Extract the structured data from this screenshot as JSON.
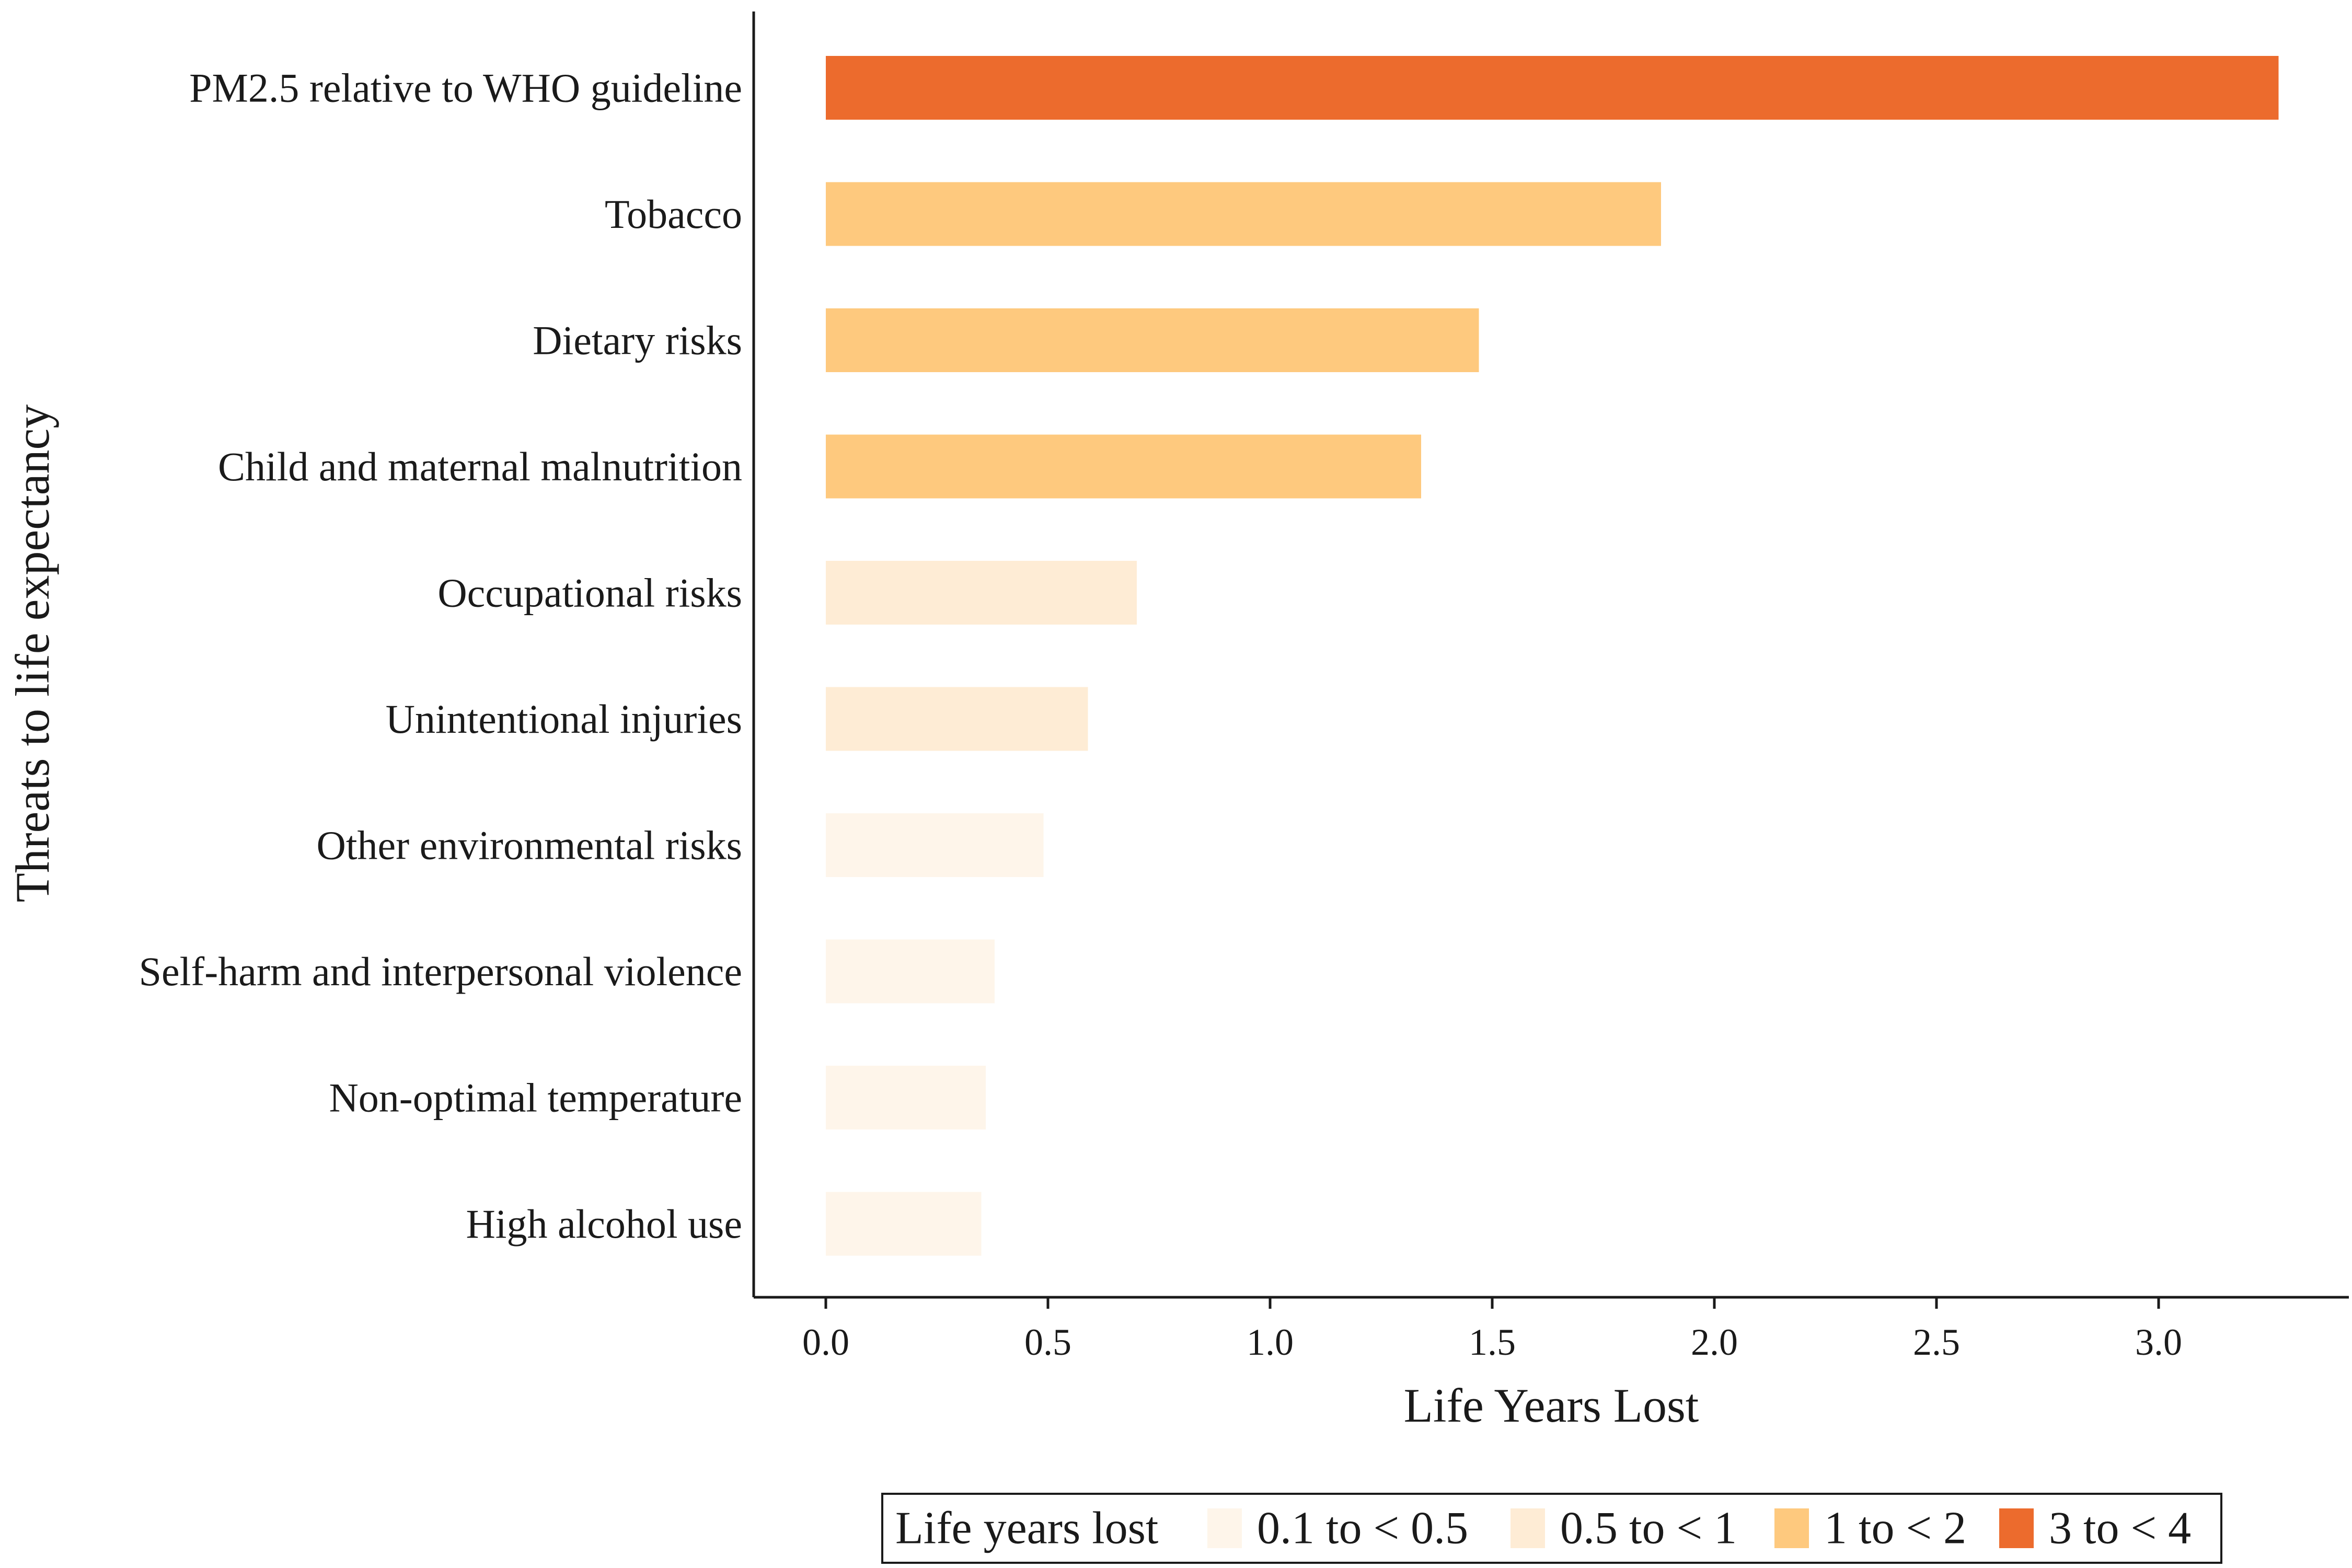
{
  "chart_data": {
    "type": "bar",
    "orientation": "horizontal",
    "categories": [
      "PM2.5 relative to WHO guideline",
      "Tobacco",
      "Dietary risks",
      "Child and maternal malnutrition",
      "Occupational risks",
      "Unintentional injuries",
      "Other environmental risks",
      "Self-harm and interpersonal violence",
      "Non-optimal temperature",
      "High alcohol use"
    ],
    "values": [
      3.27,
      1.88,
      1.47,
      1.34,
      0.7,
      0.59,
      0.49,
      0.38,
      0.36,
      0.35
    ],
    "bins": [
      "3 to < 4",
      "1 to < 2",
      "1 to < 2",
      "1 to < 2",
      "0.5 to < 1",
      "0.5 to < 1",
      "0.1 to < 0.5",
      "0.1 to < 0.5",
      "0.1 to < 0.5",
      "0.1 to < 0.5"
    ],
    "xlabel": "Life Years Lost",
    "ylabel": "Threats to life expectancy",
    "xlim": [
      -0.16,
      3.45
    ],
    "xticks": [
      "0.0",
      "0.5",
      "1.0",
      "1.5",
      "2.0",
      "2.5",
      "3.0"
    ],
    "grid": false,
    "legend": {
      "title": "Life years lost",
      "placement": "bottom",
      "entries": [
        {
          "label": "0.1 to < 0.5",
          "color": "#fef5ea"
        },
        {
          "label": "0.5 to < 1",
          "color": "#feecd5"
        },
        {
          "label": "1 to < 2",
          "color": "#fec97e"
        },
        {
          "label": "3 to < 4",
          "color": "#ec6b2d"
        }
      ]
    }
  }
}
